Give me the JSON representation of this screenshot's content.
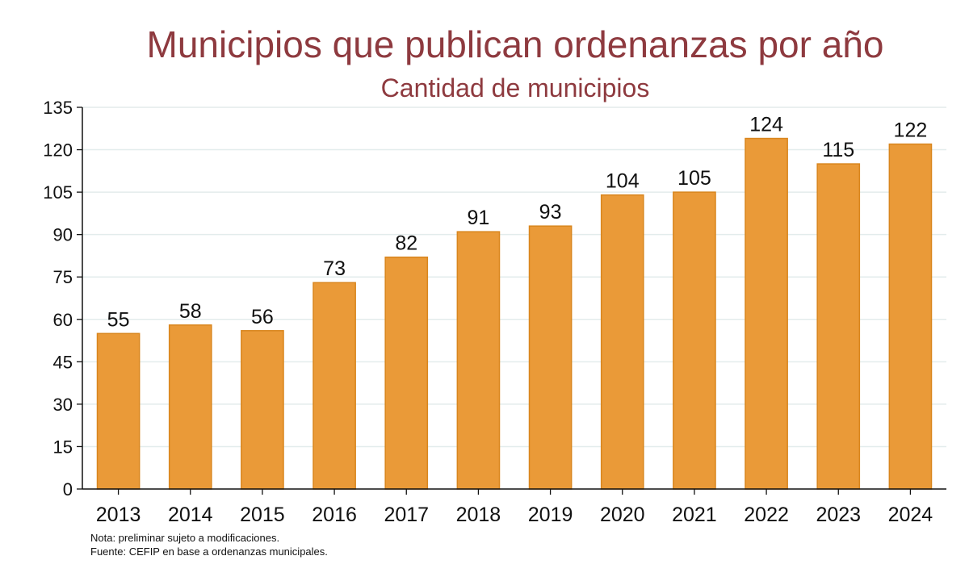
{
  "chart_data": {
    "type": "bar",
    "title": "Municipios que publican ordenanzas por año",
    "subtitle": "Cantidad de municipios",
    "xlabel": "",
    "ylabel": "",
    "categories": [
      "2013",
      "2014",
      "2015",
      "2016",
      "2017",
      "2018",
      "2019",
      "2020",
      "2021",
      "2022",
      "2023",
      "2024"
    ],
    "values": [
      55,
      58,
      56,
      73,
      82,
      91,
      93,
      104,
      105,
      124,
      115,
      122
    ],
    "ylim": [
      0,
      135
    ],
    "yticks": [
      0,
      15,
      30,
      45,
      60,
      75,
      90,
      105,
      120,
      135
    ],
    "grid": true,
    "legend": "none",
    "bar_color": "#EA9A38",
    "bar_edge_color": "#D9861E",
    "title_color": "#8E3A3F",
    "grid_color": "#E3ECEC"
  },
  "notes": [
    "Nota: preliminar sujeto a modificaciones.",
    "Fuente: CEFIP en base a ordenanzas municipales."
  ]
}
